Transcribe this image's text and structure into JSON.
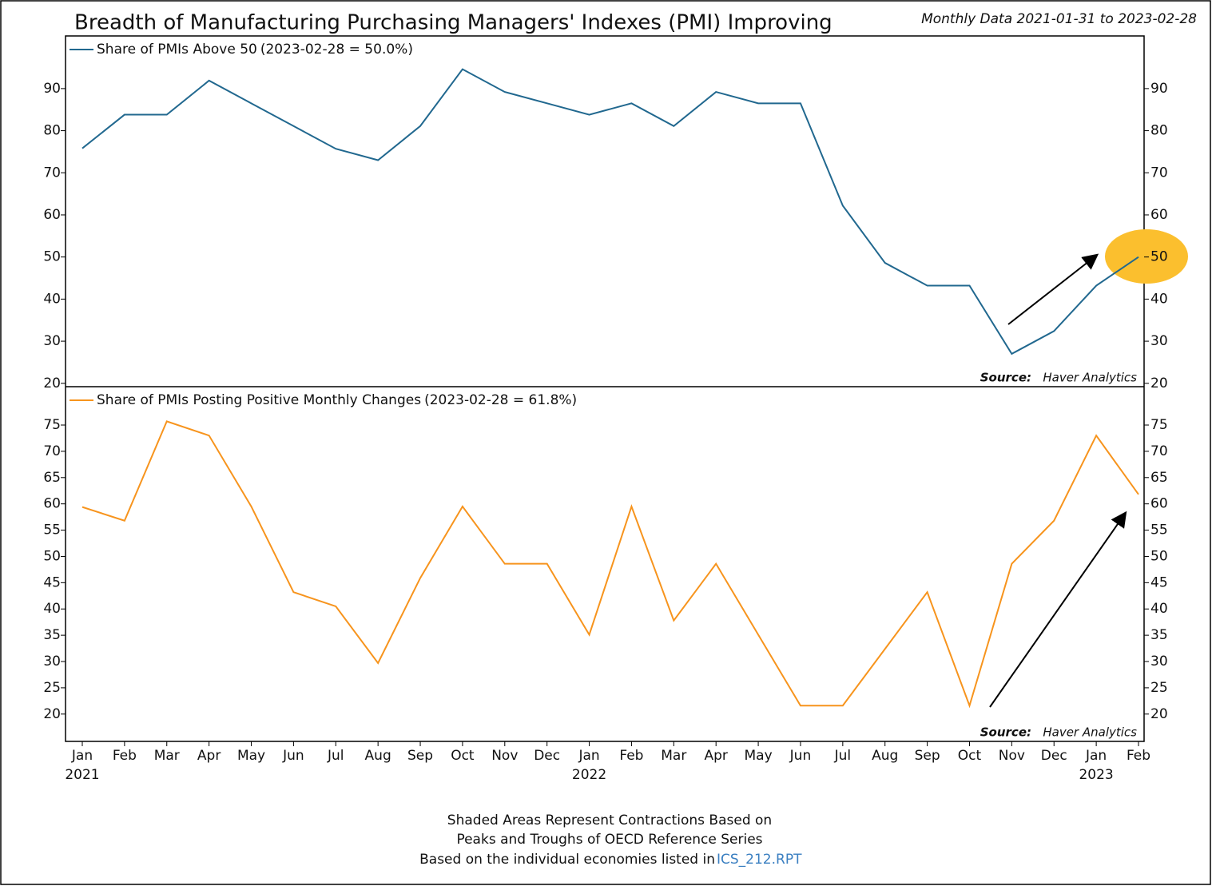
{
  "chart_data": [
    {
      "type": "line",
      "title": "Breadth of Manufacturing Purchasing Managers' Indexes (PMI) Improving",
      "subtitle": "Monthly Data 2021-01-31 to 2023-02-28",
      "series": [
        {
          "name": "Share of PMIs Above 50",
          "last_label": "(2023-02-28 = 50.0%)",
          "color": "#21688f",
          "values": [
            75.8,
            83.8,
            83.8,
            91.9,
            86.5,
            81.1,
            75.7,
            73.0,
            81.1,
            94.6,
            89.2,
            86.5,
            83.8,
            86.5,
            81.1,
            89.2,
            86.5,
            86.5,
            62.2,
            48.6,
            43.2,
            43.2,
            27.0,
            32.4,
            43.2,
            50.0
          ]
        }
      ],
      "ylim": [
        19.2,
        102.5
      ],
      "yticks": [
        20,
        30,
        40,
        50,
        60,
        70,
        80,
        90
      ],
      "source": [
        "Source:",
        "Haver Analytics"
      ]
    },
    {
      "type": "line",
      "categories": [
        "Jan",
        "Feb",
        "Mar",
        "Apr",
        "May",
        "Jun",
        "Jul",
        "Aug",
        "Sep",
        "Oct",
        "Nov",
        "Dec",
        "Jan",
        "Feb",
        "Mar",
        "Apr",
        "May",
        "Jun",
        "Jul",
        "Aug",
        "Sep",
        "Oct",
        "Nov",
        "Dec",
        "Jan",
        "Feb"
      ],
      "year_labels": [
        "2021",
        null,
        null,
        null,
        null,
        null,
        null,
        null,
        null,
        null,
        null,
        null,
        "2022",
        null,
        null,
        null,
        null,
        null,
        null,
        null,
        null,
        null,
        null,
        null,
        "2023",
        null
      ],
      "series": [
        {
          "name": "Share of PMIs Posting Positive Monthly Changes",
          "last_label": "(2023-02-28 = 61.8%)",
          "color": "#f7941d",
          "values": [
            59.4,
            56.8,
            75.7,
            73.0,
            59.5,
            43.2,
            40.5,
            29.7,
            45.9,
            59.5,
            48.6,
            48.6,
            35.1,
            59.5,
            37.8,
            48.6,
            35.1,
            21.6,
            21.6,
            32.4,
            43.2,
            21.6,
            48.6,
            56.8,
            73.0,
            61.8
          ]
        }
      ],
      "ylim": [
        14.8,
        82.3
      ],
      "yticks": [
        20,
        25,
        30,
        35,
        40,
        45,
        50,
        55,
        60,
        65,
        70,
        75
      ],
      "source": [
        "Source:",
        "Haver Analytics"
      ]
    }
  ],
  "footer": {
    "lines": [
      "Shaded Areas Represent Contractions Based on",
      "Peaks and Troughs of OECD Reference Series",
      "Based on the individual economies listed in"
    ],
    "link": "ICS_212.RPT"
  }
}
